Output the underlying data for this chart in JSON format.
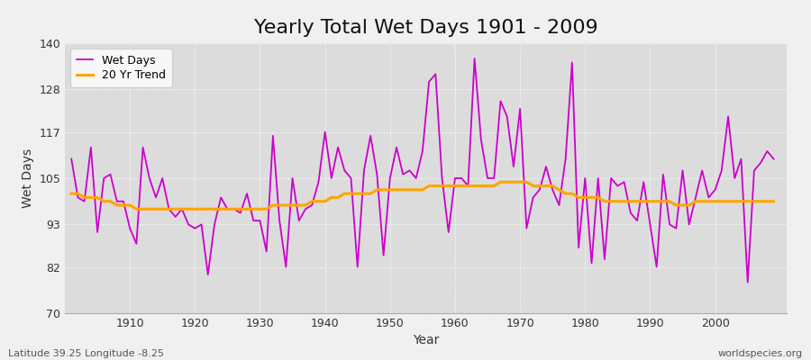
{
  "title": "Yearly Total Wet Days 1901 - 2009",
  "xlabel": "Year",
  "ylabel": "Wet Days",
  "footnote_left": "Latitude 39.25 Longitude -8.25",
  "footnote_right": "worldspecies.org",
  "years": [
    1901,
    1902,
    1903,
    1904,
    1905,
    1906,
    1907,
    1908,
    1909,
    1910,
    1911,
    1912,
    1913,
    1914,
    1915,
    1916,
    1917,
    1918,
    1919,
    1920,
    1921,
    1922,
    1923,
    1924,
    1925,
    1926,
    1927,
    1928,
    1929,
    1930,
    1931,
    1932,
    1933,
    1934,
    1935,
    1936,
    1937,
    1938,
    1939,
    1940,
    1941,
    1942,
    1943,
    1944,
    1945,
    1946,
    1947,
    1948,
    1949,
    1950,
    1951,
    1952,
    1953,
    1954,
    1955,
    1956,
    1957,
    1958,
    1959,
    1960,
    1961,
    1962,
    1963,
    1964,
    1965,
    1966,
    1967,
    1968,
    1969,
    1970,
    1971,
    1972,
    1973,
    1974,
    1975,
    1976,
    1977,
    1978,
    1979,
    1980,
    1981,
    1982,
    1983,
    1984,
    1985,
    1986,
    1987,
    1988,
    1989,
    1990,
    1991,
    1992,
    1993,
    1994,
    1995,
    1996,
    1997,
    1998,
    1999,
    2000,
    2001,
    2002,
    2003,
    2004,
    2005,
    2006,
    2007,
    2008,
    2009
  ],
  "wet_days": [
    110,
    100,
    99,
    113,
    91,
    105,
    106,
    99,
    99,
    92,
    88,
    113,
    105,
    100,
    105,
    97,
    95,
    97,
    93,
    92,
    93,
    80,
    93,
    100,
    97,
    97,
    96,
    101,
    94,
    94,
    86,
    116,
    94,
    82,
    105,
    94,
    97,
    98,
    104,
    117,
    105,
    113,
    107,
    105,
    82,
    107,
    116,
    106,
    85,
    105,
    113,
    106,
    107,
    105,
    112,
    130,
    132,
    105,
    91,
    105,
    105,
    103,
    136,
    115,
    105,
    105,
    125,
    121,
    108,
    123,
    92,
    100,
    102,
    108,
    102,
    98,
    110,
    135,
    87,
    105,
    83,
    105,
    84,
    105,
    103,
    104,
    96,
    94,
    104,
    93,
    82,
    106,
    93,
    92,
    107,
    93,
    100,
    107,
    100,
    102,
    107,
    121,
    105,
    110,
    78,
    107,
    109,
    112,
    110
  ],
  "trend": [
    101,
    101,
    100,
    100,
    100,
    99,
    99,
    98,
    98,
    98,
    97,
    97,
    97,
    97,
    97,
    97,
    97,
    97,
    97,
    97,
    97,
    97,
    97,
    97,
    97,
    97,
    97,
    97,
    97,
    97,
    97,
    98,
    98,
    98,
    98,
    98,
    98,
    99,
    99,
    99,
    100,
    100,
    101,
    101,
    101,
    101,
    101,
    102,
    102,
    102,
    102,
    102,
    102,
    102,
    102,
    103,
    103,
    103,
    103,
    103,
    103,
    103,
    103,
    103,
    103,
    103,
    104,
    104,
    104,
    104,
    104,
    103,
    103,
    103,
    103,
    102,
    101,
    101,
    100,
    100,
    100,
    100,
    99,
    99,
    99,
    99,
    99,
    99,
    99,
    99,
    99,
    99,
    99,
    98,
    98,
    98,
    99,
    99,
    99,
    99,
    99,
    99,
    99,
    99,
    99,
    99,
    99,
    99,
    99
  ],
  "wet_days_color": "#cc00cc",
  "trend_color": "#FFA500",
  "background_color": "#f0f0f0",
  "plot_bg_color": "#dcdcdc",
  "ylim": [
    70,
    140
  ],
  "yticks": [
    70,
    82,
    93,
    105,
    117,
    128,
    140
  ],
  "xticks": [
    1910,
    1920,
    1930,
    1940,
    1950,
    1960,
    1970,
    1980,
    1990,
    2000
  ],
  "title_fontsize": 16,
  "legend_loc": "upper left"
}
